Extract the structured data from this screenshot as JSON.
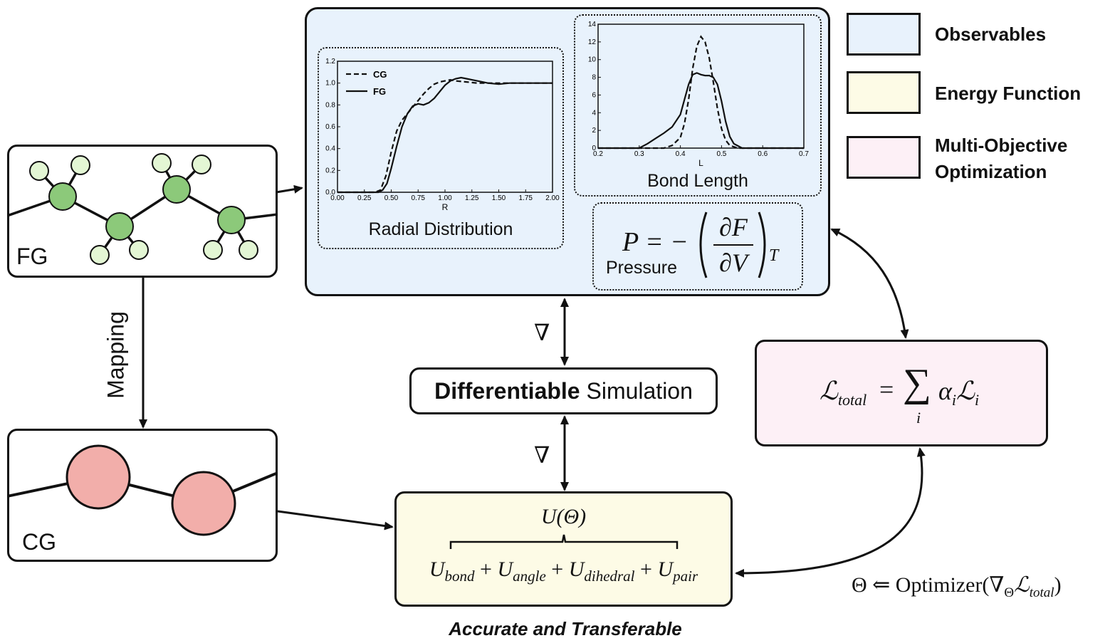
{
  "legend": {
    "observables": "Observables",
    "energy_function": "Energy Function",
    "multi_objective_line1": "Multi-Objective",
    "multi_objective_line2": "Optimization",
    "colors": {
      "observables": "#e8f2fc",
      "energy": "#fdfbe6",
      "multi": "#fdf0f6"
    }
  },
  "fg_box": {
    "label": "FG",
    "colors": {
      "heavy": "#8cc97a",
      "light": "#e3f6d4"
    }
  },
  "cg_box": {
    "label": "CG",
    "color": "#f2aeaa"
  },
  "mapping_label": "Mapping",
  "radial": {
    "title": "Radial Distribution",
    "chart_data": {
      "type": "line",
      "xlabel": "R",
      "ylabel": "",
      "xlim": [
        0.0,
        2.0
      ],
      "ylim": [
        0.0,
        1.2
      ],
      "xticks": [
        "0.00",
        "0.25",
        "0.50",
        "0.75",
        "1.00",
        "1.25",
        "1.50",
        "1.75",
        "2.00"
      ],
      "yticks": [
        "0.0",
        "0.2",
        "0.4",
        "0.6",
        "0.8",
        "1.0",
        "1.2"
      ],
      "legend_position": "top-left",
      "series": [
        {
          "name": "CG",
          "style": "dashed",
          "x": [
            0.0,
            0.35,
            0.4,
            0.45,
            0.5,
            0.55,
            0.6,
            0.65,
            0.7,
            0.75,
            0.8,
            0.85,
            0.9,
            0.95,
            1.0,
            1.05,
            1.1,
            1.2,
            1.3,
            1.4,
            1.5,
            1.6,
            1.8,
            2.0
          ],
          "y": [
            0.0,
            0.0,
            0.02,
            0.15,
            0.37,
            0.56,
            0.66,
            0.72,
            0.78,
            0.84,
            0.9,
            0.95,
            0.99,
            1.01,
            1.02,
            1.03,
            1.02,
            1.01,
            1.0,
            1.0,
            1.0,
            1.0,
            1.0,
            1.0
          ]
        },
        {
          "name": "FG",
          "style": "solid",
          "x": [
            0.0,
            0.38,
            0.42,
            0.46,
            0.5,
            0.55,
            0.6,
            0.65,
            0.7,
            0.75,
            0.8,
            0.85,
            0.9,
            0.95,
            1.0,
            1.05,
            1.1,
            1.15,
            1.2,
            1.25,
            1.3,
            1.4,
            1.5,
            1.6,
            1.8,
            2.0
          ],
          "y": [
            0.0,
            0.0,
            0.02,
            0.08,
            0.22,
            0.42,
            0.6,
            0.72,
            0.79,
            0.81,
            0.8,
            0.82,
            0.86,
            0.92,
            0.98,
            1.02,
            1.04,
            1.05,
            1.04,
            1.03,
            1.02,
            1.0,
            0.99,
            1.0,
            1.0,
            1.0
          ]
        }
      ]
    }
  },
  "bond": {
    "title": "Bond Length",
    "chart_data": {
      "type": "line",
      "xlabel": "L",
      "ylabel": "",
      "xlim": [
        0.2,
        0.7
      ],
      "ylim": [
        0,
        14
      ],
      "xticks": [
        "0.2",
        "0.3",
        "0.4",
        "0.5",
        "0.6",
        "0.7"
      ],
      "yticks": [
        "0",
        "2",
        "4",
        "6",
        "8",
        "10",
        "12",
        "14"
      ],
      "series": [
        {
          "name": "",
          "style": "dashed",
          "x": [
            0.2,
            0.36,
            0.38,
            0.4,
            0.41,
            0.42,
            0.43,
            0.44,
            0.45,
            0.46,
            0.47,
            0.48,
            0.49,
            0.5,
            0.51,
            0.52,
            0.54,
            0.7
          ],
          "y": [
            0,
            0,
            0.3,
            1.2,
            2.8,
            5.5,
            9.0,
            11.5,
            12.6,
            12.0,
            10.2,
            7.5,
            4.5,
            2.2,
            0.9,
            0.3,
            0,
            0
          ]
        },
        {
          "name": "",
          "style": "solid",
          "x": [
            0.2,
            0.3,
            0.32,
            0.34,
            0.36,
            0.38,
            0.4,
            0.41,
            0.42,
            0.43,
            0.44,
            0.45,
            0.46,
            0.47,
            0.48,
            0.49,
            0.5,
            0.51,
            0.52,
            0.53,
            0.55,
            0.7
          ],
          "y": [
            0,
            0,
            0.5,
            1.1,
            1.7,
            2.4,
            3.8,
            5.5,
            7.2,
            8.3,
            8.5,
            8.3,
            8.2,
            8.2,
            8.0,
            7.2,
            5.3,
            3.0,
            1.3,
            0.5,
            0,
            0
          ]
        }
      ]
    }
  },
  "pressure": {
    "label": "Pressure",
    "formula_lhs": "P = −",
    "numerator": "∂F",
    "denominator": "∂V",
    "subscript": "T"
  },
  "simulation": {
    "bold_part": "Differentiable",
    "normal_part": " Simulation"
  },
  "gradient_symbol": "∇",
  "energy": {
    "top": "U(Θ)",
    "terms": [
      {
        "base": "U",
        "sub": "bond",
        "op": " + "
      },
      {
        "base": "U",
        "sub": "angle",
        "op": " + "
      },
      {
        "base": "U",
        "sub": "dihedral",
        "op": " + "
      },
      {
        "base": "U",
        "sub": "pair",
        "op": ""
      }
    ]
  },
  "loss": {
    "lhs_symbol": "ℒ",
    "lhs_sub": "total",
    "equals": "=",
    "sum_symbol": "∑",
    "sum_index": "i",
    "rhs_alpha": "α",
    "rhs_alpha_sub": "i",
    "rhs_L": "ℒ",
    "rhs_L_sub": "i"
  },
  "optimizer": {
    "prefix": "Θ ⇐ Optimizer(∇",
    "nabla_sub": "Θ",
    "L": "ℒ",
    "L_sub": "total",
    "suffix": ")"
  },
  "caption": "Accurate and Transferable"
}
